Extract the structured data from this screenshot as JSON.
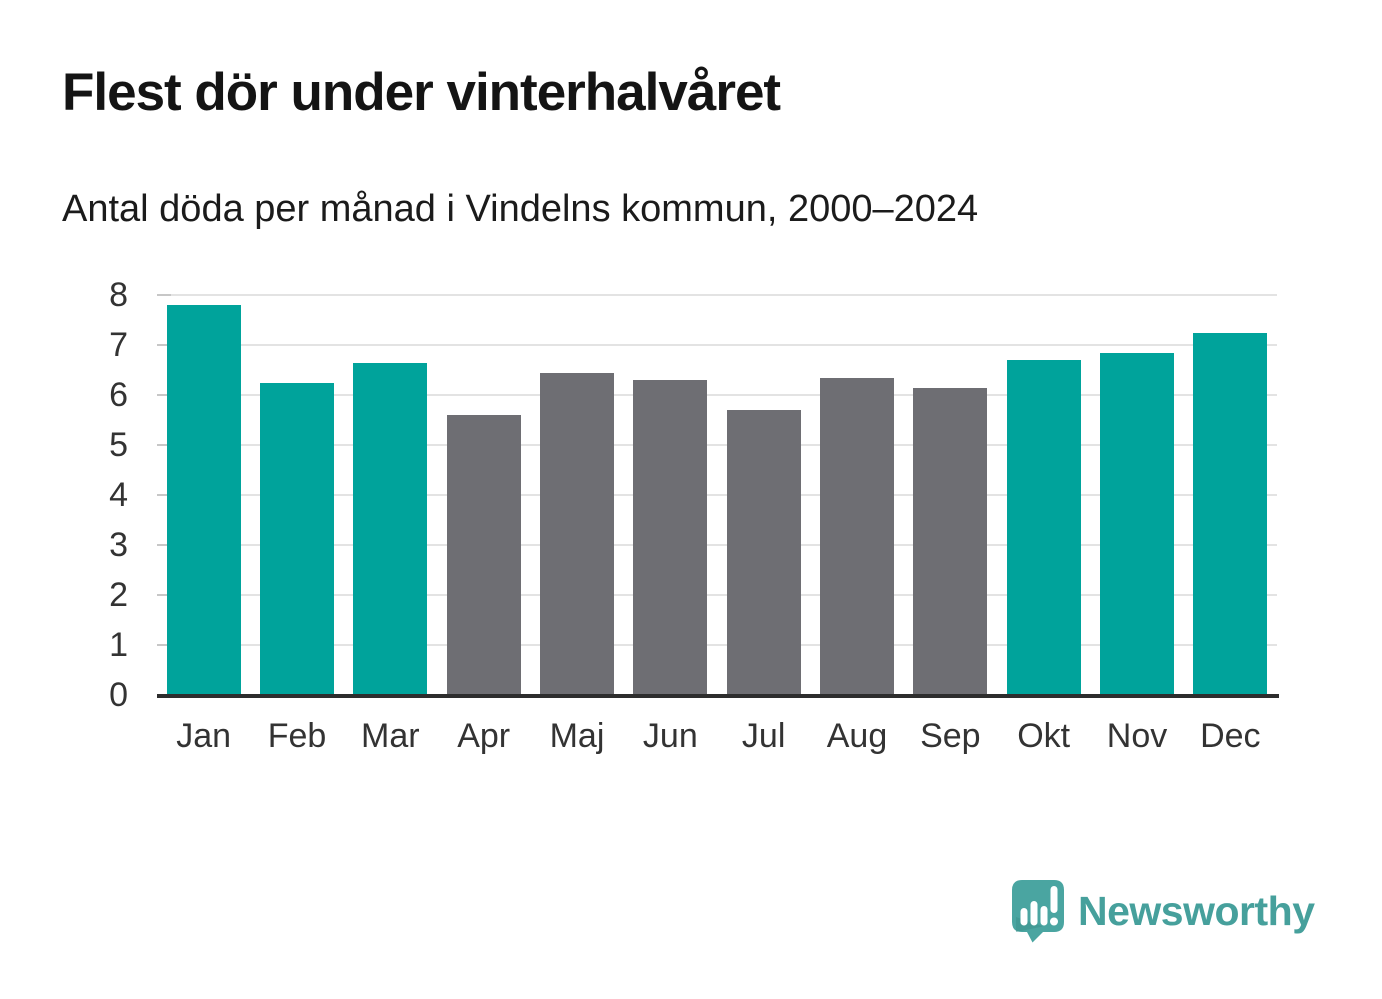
{
  "header": {
    "title": "Flest dör under vinterhalvåret",
    "subtitle": "Antal döda per månad i Vindelns kommun, 2000–2024"
  },
  "chart_data": {
    "type": "bar",
    "title": "Flest dör under vinterhalvåret",
    "subtitle": "Antal döda per månad i Vindelns kommun, 2000–2024",
    "categories": [
      "Jan",
      "Feb",
      "Mar",
      "Apr",
      "Maj",
      "Jun",
      "Jul",
      "Aug",
      "Sep",
      "Okt",
      "Nov",
      "Dec"
    ],
    "values": [
      7.8,
      6.25,
      6.65,
      5.6,
      6.45,
      6.3,
      5.7,
      6.35,
      6.15,
      6.7,
      6.85,
      7.25
    ],
    "groups": [
      "winter",
      "winter",
      "winter",
      "summer",
      "summer",
      "summer",
      "summer",
      "summer",
      "summer",
      "winter",
      "winter",
      "winter"
    ],
    "colors": {
      "winter": "#00a39b",
      "summer": "#6e6e73"
    },
    "xlabel": "",
    "ylabel": "",
    "ylim": [
      0,
      8
    ],
    "yticks": [
      0,
      1,
      2,
      3,
      4,
      5,
      6,
      7,
      8
    ],
    "grid": true,
    "legend": "none",
    "axis_color": "#2d2d2d",
    "gridline_color": "#e3e3e3",
    "tick_label_color": "#333333"
  },
  "footer": {
    "brand": "Newsworthy",
    "brand_color": "#46a09c",
    "logo_icon": "speech-bubble-bar-chart-icon"
  }
}
